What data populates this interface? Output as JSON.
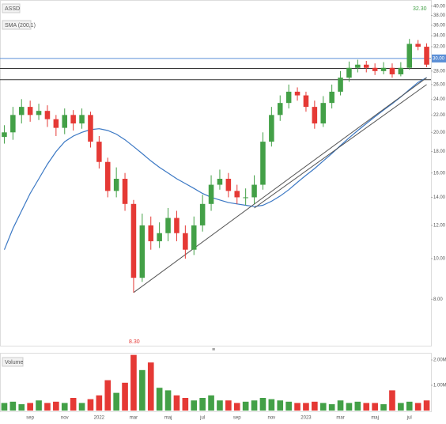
{
  "chart_data": {
    "type": "candlestick",
    "title": "ASSD",
    "categories": [
      null,
      null,
      null,
      "sep",
      null,
      null,
      null,
      "nov",
      null,
      null,
      null,
      "2022",
      null,
      null,
      null,
      "mar",
      null,
      null,
      null,
      "maj",
      null,
      null,
      null,
      "jul",
      null,
      null,
      null,
      "sep",
      null,
      null,
      null,
      "nov",
      null,
      null,
      null,
      "2023",
      null,
      null,
      null,
      "mar",
      null,
      null,
      null,
      "maj",
      null,
      null,
      null,
      "jul",
      null,
      null
    ],
    "open": [
      19.5,
      20,
      22,
      23,
      22,
      22.5,
      21.5,
      20.5,
      22,
      21,
      22,
      19,
      17,
      14.5,
      15.5,
      13.5,
      9,
      12,
      11,
      11.5,
      12.5,
      11.5,
      10.5,
      12,
      13.5,
      15,
      15.5,
      14.5,
      14,
      14,
      15,
      19,
      22,
      23.5,
      25,
      24.5,
      23,
      21,
      23.5,
      25,
      27,
      28.5,
      29,
      28.5,
      28,
      28.5,
      27.5,
      28.5,
      32.5,
      32
    ],
    "high": [
      20.8,
      23,
      24,
      23.8,
      23.4,
      23.2,
      22,
      22.8,
      22.6,
      22.8,
      22.4,
      19.6,
      17.4,
      16.5,
      16,
      13.8,
      12.8,
      12.6,
      12.2,
      13.2,
      13,
      12,
      12.6,
      14.2,
      15.8,
      16.3,
      16,
      15,
      14.7,
      15.8,
      20,
      23,
      24.5,
      26,
      25.6,
      25,
      23.8,
      24.4,
      26,
      28,
      29.5,
      29.8,
      29.6,
      29.2,
      29.4,
      29.2,
      29.4,
      33.4,
      33.2,
      32.6
    ],
    "low": [
      18.8,
      19.2,
      21,
      21.2,
      21.4,
      20.6,
      19.6,
      19.8,
      20.2,
      20.4,
      18.4,
      16.4,
      14,
      14,
      13,
      8.3,
      8.8,
      10.5,
      10.6,
      11,
      11,
      10,
      10.2,
      11.6,
      13,
      14.6,
      14,
      13.5,
      13.4,
      13.5,
      14.6,
      18.5,
      21.3,
      22.8,
      23.8,
      22.4,
      20.4,
      20.6,
      22.8,
      24.5,
      26.4,
      27.8,
      27.8,
      27.4,
      27.5,
      27,
      27.2,
      28.2,
      31.4,
      28.6
    ],
    "close": [
      20,
      22,
      23,
      22,
      22.5,
      21.5,
      20.5,
      22,
      21,
      22,
      19,
      17,
      14.5,
      15.5,
      13.5,
      9,
      12,
      11,
      11.5,
      12.5,
      11.5,
      10.5,
      12,
      13.5,
      15,
      15.5,
      14.5,
      14,
      14,
      15,
      19,
      22,
      23.5,
      25,
      24.5,
      23,
      21,
      23.5,
      25,
      27,
      28.5,
      29,
      28.5,
      28,
      28.5,
      27.5,
      28.5,
      32.5,
      32,
      29
    ],
    "up_color": "#43a047",
    "down_color": "#e53935",
    "sma": {
      "name": "SMA (200,1)",
      "color": "#3b78c4",
      "values": [
        10.5,
        11.8,
        13,
        14.3,
        15.5,
        16.8,
        18,
        19,
        19.6,
        20,
        20.3,
        20.4,
        20.2,
        19.8,
        19.2,
        18.5,
        17.8,
        17.1,
        16.5,
        16,
        15.5,
        15.1,
        14.7,
        14.3,
        14,
        13.8,
        13.6,
        13.5,
        13.4,
        13.3,
        13.4,
        13.7,
        14.1,
        14.6,
        15.2,
        15.8,
        16.4,
        17.1,
        17.8,
        18.6,
        19.4,
        20.2,
        21,
        21.8,
        22.6,
        23.4,
        24.3,
        25.3,
        26.3,
        27
      ]
    },
    "hlines": [
      {
        "value": 30,
        "color": "#5b8fd6",
        "label": "30.00"
      },
      {
        "value": 28.4,
        "color": "#333333"
      },
      {
        "value": 26.7,
        "color": "#333333"
      }
    ],
    "trendlines": [
      {
        "x": [
          15,
          49
        ],
        "y": [
          8.3,
          27
        ],
        "color": "#555555"
      },
      {
        "x": [
          29,
          49
        ],
        "y": [
          13.2,
          26
        ],
        "color": "#555555"
      }
    ],
    "annotations": [
      "32.30",
      "8.30"
    ],
    "log_scale": true,
    "grid": false,
    "ylim": [
      6.2,
      41
    ],
    "yticks": [
      {
        "value": 8,
        "label": "8.00"
      },
      {
        "value": 10,
        "label": "10.00"
      },
      {
        "value": 12,
        "label": "12.00"
      },
      {
        "value": 14,
        "label": "14.00"
      },
      {
        "value": 16,
        "label": "16.00"
      },
      {
        "value": 18,
        "label": "18.00"
      },
      {
        "value": 20,
        "label": "20.00"
      },
      {
        "value": 22,
        "label": "22.00"
      },
      {
        "value": 24,
        "label": "24.00"
      },
      {
        "value": 26,
        "label": "26.00"
      },
      {
        "value": 28,
        "label": "28.00"
      },
      {
        "value": 32,
        "label": "32.00"
      },
      {
        "value": 34,
        "label": "34.00"
      },
      {
        "value": 36,
        "label": "36.00"
      },
      {
        "value": 38,
        "label": "38.00"
      },
      {
        "value": 40,
        "label": "40.00"
      }
    ],
    "volume": {
      "name": "Volume",
      "values": [
        0.3,
        0.35,
        0.25,
        0.3,
        0.4,
        0.3,
        0.35,
        0.3,
        0.5,
        0.3,
        0.45,
        0.6,
        1.2,
        0.7,
        1.1,
        2.2,
        1.6,
        1.9,
        0.9,
        0.8,
        0.6,
        0.5,
        0.4,
        0.5,
        0.6,
        0.4,
        0.4,
        0.3,
        0.35,
        0.4,
        0.5,
        0.45,
        0.4,
        0.35,
        0.3,
        0.3,
        0.35,
        0.3,
        0.25,
        0.4,
        0.3,
        0.35,
        0.3,
        0.3,
        0.25,
        0.8,
        0.3,
        0.35,
        0.3,
        0.4
      ],
      "ylim": [
        0,
        2.22
      ],
      "yticks": [
        {
          "value": 1,
          "label": "1.00M"
        },
        {
          "value": 2,
          "label": "2.00M"
        }
      ]
    }
  }
}
